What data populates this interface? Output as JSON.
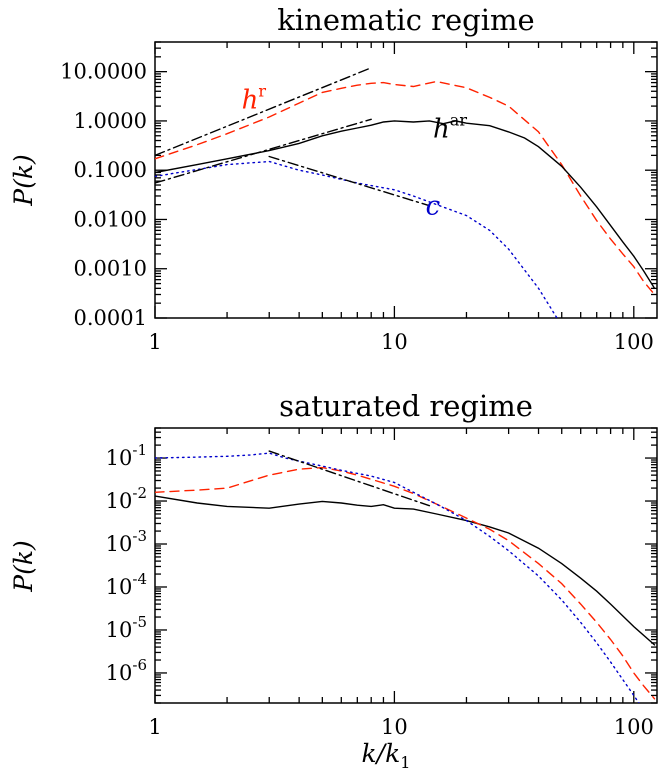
{
  "chart_data": [
    {
      "type": "line",
      "title": "kinematic regime",
      "ylabel": "P(k)",
      "xlabel": "",
      "xscale": "log",
      "yscale": "log",
      "xlim": [
        1,
        125
      ],
      "ylim": [
        0.0001,
        40
      ],
      "xticks": [
        {
          "v": 1,
          "label": "1"
        },
        {
          "v": 10,
          "label": "10"
        },
        {
          "v": 100,
          "label": "100"
        }
      ],
      "yticks": [
        {
          "v": 0.0001,
          "label": "0.0001"
        },
        {
          "v": 0.001,
          "label": "0.0010"
        },
        {
          "v": 0.01,
          "label": "0.0100"
        },
        {
          "v": 0.1,
          "label": "0.1000"
        },
        {
          "v": 1,
          "label": "1.0000"
        },
        {
          "v": 10,
          "label": "10.0000"
        }
      ],
      "series": [
        {
          "name": "h^r",
          "color": "#ff2200",
          "style": "dashed",
          "x": [
            1,
            1.5,
            2,
            3,
            4,
            5,
            6,
            7,
            8,
            9,
            10,
            12,
            15,
            20,
            25,
            30,
            40,
            50,
            60,
            70,
            80,
            90,
            100,
            110,
            122
          ],
          "y": [
            0.17,
            0.33,
            0.55,
            1.2,
            2.3,
            3.8,
            4.6,
            5.3,
            5.8,
            6.0,
            5.5,
            5.0,
            6.3,
            4.7,
            3.0,
            2.0,
            0.6,
            0.13,
            0.03,
            0.0095,
            0.004,
            0.002,
            0.0011,
            0.00055,
            0.0003
          ]
        },
        {
          "name": "h^ar",
          "color": "#000000",
          "style": "solid",
          "x": [
            1,
            1.5,
            2,
            3,
            4,
            5,
            6,
            7,
            8,
            9,
            10,
            12,
            14,
            16,
            18,
            20,
            25,
            30,
            35,
            40,
            50,
            60,
            70,
            80,
            90,
            100,
            110,
            122
          ],
          "y": [
            0.09,
            0.13,
            0.17,
            0.25,
            0.35,
            0.5,
            0.62,
            0.72,
            0.82,
            0.95,
            1.0,
            0.95,
            1.0,
            0.88,
            1.0,
            0.9,
            0.8,
            0.6,
            0.45,
            0.3,
            0.12,
            0.045,
            0.018,
            0.0075,
            0.0035,
            0.0018,
            0.0009,
            0.0004
          ]
        },
        {
          "name": "c",
          "color": "#0000cc",
          "style": "dotted",
          "x": [
            1,
            2,
            3,
            4,
            5,
            7,
            10,
            12,
            15,
            20,
            25,
            30,
            40,
            50
          ],
          "y": [
            0.075,
            0.13,
            0.15,
            0.1,
            0.08,
            0.055,
            0.04,
            0.03,
            0.02,
            0.012,
            0.006,
            0.0025,
            0.0004,
            7e-05
          ]
        },
        {
          "name": "",
          "color": "#000000",
          "style": "dashdot",
          "x": [
            1,
            8
          ],
          "y": [
            0.2,
            12
          ]
        },
        {
          "name": "",
          "color": "#000000",
          "style": "dashdot",
          "x": [
            1,
            8
          ],
          "y": [
            0.055,
            1.08
          ]
        },
        {
          "name": "",
          "color": "#000000",
          "style": "dashdot",
          "x": [
            3,
            14
          ],
          "y": [
            0.19,
            0.019
          ]
        }
      ],
      "annotations": [
        {
          "text": "h",
          "sup": "r",
          "color": "#ff2200",
          "x": 2.3,
          "y": 1.8
        },
        {
          "text": "h",
          "sup": "ar",
          "color": "#000000",
          "x": 14.5,
          "y": 0.46
        },
        {
          "text": "c",
          "sup": "",
          "color": "#0000cc",
          "x": 13.5,
          "y": 0.0125
        }
      ]
    },
    {
      "type": "line",
      "title": "saturated regime",
      "ylabel": "P(k)",
      "xlabel": "k/k",
      "xlabel_sub": "1",
      "xscale": "log",
      "yscale": "log",
      "xlim": [
        1,
        125
      ],
      "ylim": [
        2e-07,
        0.5
      ],
      "xticks": [
        {
          "v": 1,
          "label": "1"
        },
        {
          "v": 10,
          "label": "10"
        },
        {
          "v": 100,
          "label": "100"
        }
      ],
      "yticks": [
        {
          "v": 1e-06,
          "base": "10",
          "exp": "-6"
        },
        {
          "v": 1e-05,
          "base": "10",
          "exp": "-5"
        },
        {
          "v": 0.0001,
          "base": "10",
          "exp": "-4"
        },
        {
          "v": 0.001,
          "base": "10",
          "exp": "-3"
        },
        {
          "v": 0.01,
          "base": "10",
          "exp": "-2"
        },
        {
          "v": 0.1,
          "base": "10",
          "exp": "-1"
        }
      ],
      "series": [
        {
          "name": "",
          "color": "#000000",
          "style": "solid",
          "x": [
            1,
            1.5,
            2,
            3,
            4,
            5,
            6,
            7,
            8,
            9,
            10,
            12,
            15,
            20,
            25,
            30,
            40,
            50,
            60,
            70,
            80,
            100,
            122
          ],
          "y": [
            0.013,
            0.009,
            0.0075,
            0.0068,
            0.0085,
            0.0098,
            0.009,
            0.008,
            0.0075,
            0.0082,
            0.0068,
            0.0065,
            0.005,
            0.0035,
            0.0025,
            0.0018,
            0.0008,
            0.00035,
            0.00016,
            8e-05,
            4e-05,
            1.2e-05,
            4.5e-06
          ]
        },
        {
          "name": "",
          "color": "#ff2200",
          "style": "dashed",
          "x": [
            1,
            1.5,
            2,
            3,
            4,
            5,
            6,
            7,
            8,
            10,
            12,
            15,
            20,
            25,
            30,
            40,
            50,
            60,
            70,
            80,
            90,
            100,
            110,
            122
          ],
          "y": [
            0.016,
            0.018,
            0.02,
            0.04,
            0.055,
            0.06,
            0.05,
            0.04,
            0.032,
            0.022,
            0.015,
            0.0085,
            0.004,
            0.0022,
            0.0012,
            0.00035,
            0.00012,
            4e-05,
            1.5e-05,
            6e-06,
            2.5e-06,
            1e-06,
            5e-07,
            2.5e-07
          ]
        },
        {
          "name": "",
          "color": "#0000cc",
          "style": "dotted",
          "x": [
            1,
            1.5,
            2,
            2.5,
            3,
            3.5,
            4,
            5,
            6,
            8,
            10,
            12,
            15,
            20,
            25,
            30,
            40,
            50,
            60,
            70,
            80,
            90,
            100,
            105
          ],
          "y": [
            0.1,
            0.105,
            0.11,
            0.118,
            0.13,
            0.1,
            0.085,
            0.065,
            0.052,
            0.038,
            0.027,
            0.016,
            0.0085,
            0.0035,
            0.0015,
            0.0007,
            0.00018,
            5e-05,
            1.5e-05,
            5e-06,
            1.8e-06,
            7e-07,
            3e-07,
            2e-07
          ]
        },
        {
          "name": "",
          "color": "#000000",
          "style": "dashdot",
          "x": [
            3,
            14
          ],
          "y": [
            0.145,
            0.0078
          ]
        }
      ],
      "annotations": []
    }
  ]
}
